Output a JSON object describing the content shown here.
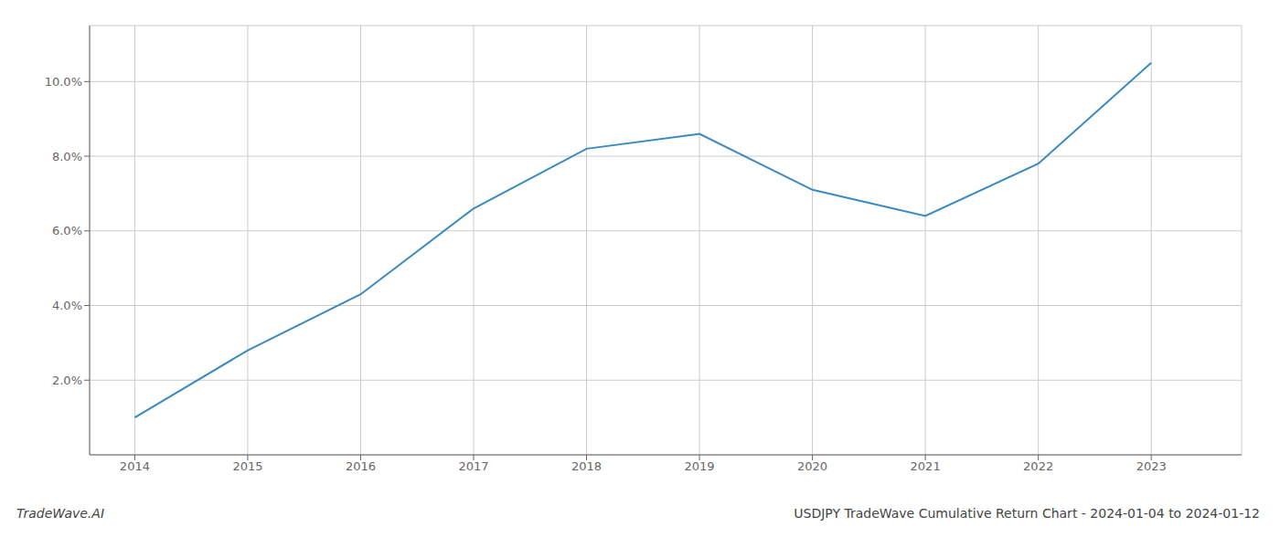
{
  "chart_data": {
    "type": "line",
    "title": "USDJPY TradeWave Cumulative Return Chart - 2024-01-04 to 2024-01-12",
    "annotations": [
      "TradeWave.AI"
    ],
    "x": [
      2014,
      2015,
      2016,
      2017,
      2018,
      2019,
      2020,
      2021,
      2022,
      2023
    ],
    "values": [
      1.0,
      2.8,
      4.3,
      6.6,
      8.2,
      8.6,
      7.1,
      6.4,
      7.8,
      10.5
    ],
    "color": "#3a8abf",
    "xlim": [
      2013.6,
      2023.8
    ],
    "xticks": [
      2014,
      2015,
      2016,
      2017,
      2018,
      2019,
      2020,
      2021,
      2022,
      2023
    ],
    "ylim": [
      0,
      11.5
    ],
    "yticks": [
      {
        "value": 2.0,
        "label": "2.0%"
      },
      {
        "value": 4.0,
        "label": "4.0%"
      },
      {
        "value": 6.0,
        "label": "6.0%"
      },
      {
        "value": 8.0,
        "label": "8.0%"
      },
      {
        "value": 10.0,
        "label": "10.0%"
      }
    ],
    "grid": true
  }
}
